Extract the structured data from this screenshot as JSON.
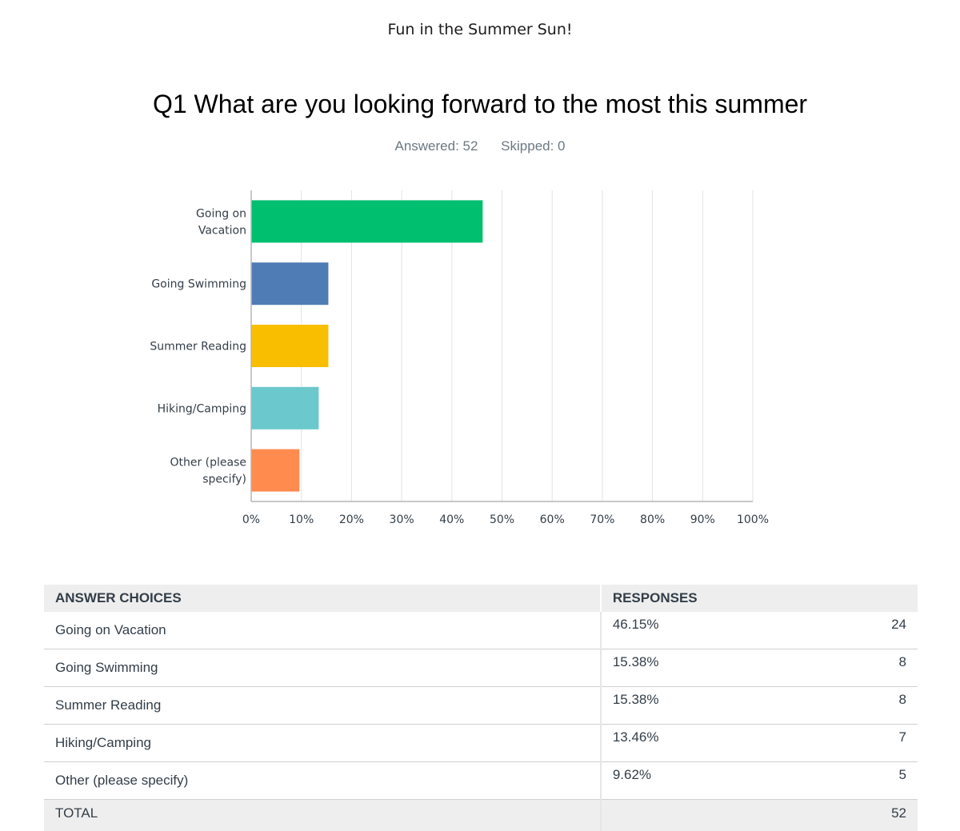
{
  "survey_title": "Fun in the Summer Sun!",
  "question_title": "Q1 What are you looking forward to the most this summer",
  "answered_label": "Answered: 52",
  "skipped_label": "Skipped: 0",
  "chart_data": {
    "type": "bar",
    "orientation": "horizontal",
    "categories": [
      [
        "Going on",
        "Vacation"
      ],
      [
        "Going Swimming"
      ],
      [
        "Summer Reading"
      ],
      [
        "Hiking/Camping"
      ],
      [
        "Other (please",
        "specify)"
      ]
    ],
    "values": [
      46.15,
      15.38,
      15.38,
      13.46,
      9.62
    ],
    "colors": [
      "#00bf6f",
      "#507cb6",
      "#f9be00",
      "#6bc8cd",
      "#ff8b4f"
    ],
    "xlim": [
      0,
      100
    ],
    "ticks": [
      "0%",
      "10%",
      "20%",
      "30%",
      "40%",
      "50%",
      "60%",
      "70%",
      "80%",
      "90%",
      "100%"
    ],
    "grid": true
  },
  "table": {
    "headers": [
      "ANSWER CHOICES",
      "RESPONSES"
    ],
    "rows": [
      {
        "choice": "Going on Vacation",
        "percent": "46.15%",
        "count": "24"
      },
      {
        "choice": "Going Swimming",
        "percent": "15.38%",
        "count": "8"
      },
      {
        "choice": "Summer Reading",
        "percent": "15.38%",
        "count": "8"
      },
      {
        "choice": "Hiking/Camping",
        "percent": "13.46%",
        "count": "7"
      },
      {
        "choice": "Other (please specify)",
        "percent": "9.62%",
        "count": "5"
      }
    ],
    "total_label": "TOTAL",
    "total_count": "52"
  }
}
